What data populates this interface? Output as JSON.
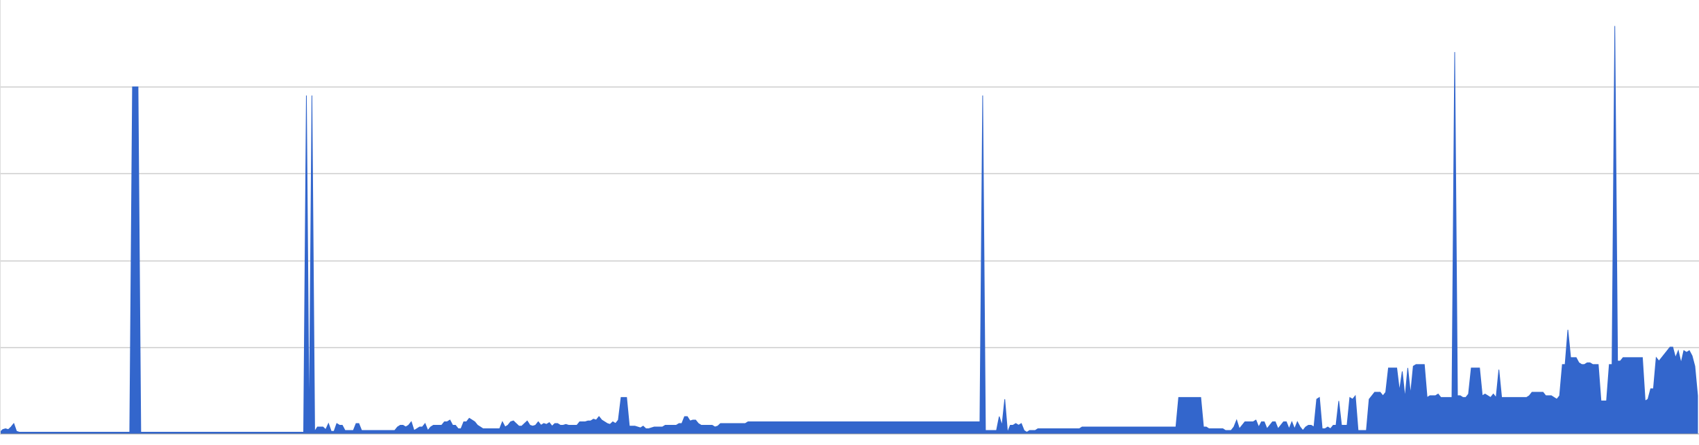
{
  "chart_data": {
    "type": "area",
    "title": "",
    "xlabel": "",
    "ylabel": "",
    "grid": true,
    "legend": "none",
    "ylim": [
      0,
      5
    ],
    "gridlines": [
      1,
      2,
      3,
      4
    ],
    "colors": {
      "area": "#3366cc",
      "grid": "#cccccc",
      "axis": "#999999",
      "background": "#ffffff"
    },
    "series": [
      {
        "values": [
          0.02,
          0.05,
          0.06,
          0.05,
          0.08,
          0.12,
          0.03,
          0.02,
          0.02,
          0.02,
          0.02,
          0.02,
          0.02,
          0.02,
          0.02,
          0.02,
          0.02,
          0.02,
          0.02,
          0.02,
          0.02,
          0.02,
          0.02,
          0.02,
          0.02,
          0.02,
          0.02,
          0.02,
          0.02,
          0.02,
          0.02,
          0.02,
          0.02,
          0.02,
          0.02,
          0.02,
          0.02,
          0.02,
          0.02,
          0.02,
          0.02,
          0.02,
          0.02,
          0.02,
          0.02,
          0.02,
          0.02,
          0.02,
          4.0,
          4.0,
          4.0,
          0.02,
          0.02,
          0.02,
          0.02,
          0.02,
          0.02,
          0.02,
          0.02,
          0.02,
          0.02,
          0.02,
          0.02,
          0.02,
          0.02,
          0.02,
          0.02,
          0.02,
          0.02,
          0.02,
          0.02,
          0.02,
          0.02,
          0.02,
          0.02,
          0.02,
          0.02,
          0.02,
          0.02,
          0.02,
          0.02,
          0.02,
          0.02,
          0.02,
          0.02,
          0.02,
          0.02,
          0.02,
          0.02,
          0.02,
          0.02,
          0.02,
          0.02,
          0.02,
          0.02,
          0.02,
          0.02,
          0.02,
          0.02,
          0.02,
          0.02,
          0.02,
          0.02,
          0.02,
          0.02,
          0.02,
          0.02,
          0.02,
          0.02,
          0.02,
          0.02,
          3.9,
          0.03,
          3.9,
          0.03,
          0.08,
          0.08,
          0.08,
          0.05,
          0.12,
          0.03,
          0.03,
          0.12,
          0.1,
          0.1,
          0.04,
          0.04,
          0.04,
          0.04,
          0.12,
          0.12,
          0.04,
          0.04,
          0.04,
          0.04,
          0.04,
          0.04,
          0.04,
          0.04,
          0.04,
          0.04,
          0.04,
          0.04,
          0.04,
          0.08,
          0.1,
          0.1,
          0.08,
          0.1,
          0.14,
          0.04,
          0.06,
          0.08,
          0.08,
          0.12,
          0.04,
          0.08,
          0.1,
          0.1,
          0.1,
          0.1,
          0.14,
          0.14,
          0.16,
          0.1,
          0.1,
          0.06,
          0.06,
          0.14,
          0.14,
          0.18,
          0.16,
          0.14,
          0.1,
          0.08,
          0.06,
          0.06,
          0.06,
          0.06,
          0.06,
          0.06,
          0.06,
          0.14,
          0.08,
          0.1,
          0.14,
          0.15,
          0.12,
          0.09,
          0.09,
          0.12,
          0.15,
          0.1,
          0.09,
          0.1,
          0.14,
          0.1,
          0.12,
          0.11,
          0.13,
          0.09,
          0.12,
          0.12,
          0.1,
          0.1,
          0.11,
          0.1,
          0.1,
          0.1,
          0.1,
          0.14,
          0.14,
          0.14,
          0.15,
          0.15,
          0.17,
          0.16,
          0.2,
          0.16,
          0.14,
          0.12,
          0.11,
          0.14,
          0.12,
          0.16,
          0.42,
          0.42,
          0.42,
          0.09,
          0.09,
          0.09,
          0.08,
          0.07,
          0.09,
          0.06,
          0.06,
          0.07,
          0.08,
          0.08,
          0.08,
          0.08,
          0.1,
          0.1,
          0.1,
          0.1,
          0.1,
          0.12,
          0.12,
          0.2,
          0.2,
          0.15,
          0.16,
          0.16,
          0.12,
          0.1,
          0.1,
          0.1,
          0.1,
          0.1,
          0.08,
          0.09,
          0.12,
          0.12,
          0.12,
          0.12,
          0.12,
          0.12,
          0.12,
          0.12,
          0.12,
          0.12,
          0.14,
          0.14,
          0.14,
          0.14,
          0.14,
          0.14,
          0.14,
          0.14,
          0.14,
          0.14,
          0.14,
          0.14,
          0.14,
          0.14,
          0.14,
          0.14,
          0.14,
          0.14,
          0.14,
          0.14,
          0.14,
          0.14,
          0.14,
          0.14,
          0.14,
          0.14,
          0.14,
          0.14,
          0.14,
          0.14,
          0.14,
          0.14,
          0.14,
          0.14,
          0.14,
          0.14,
          0.14,
          0.14,
          0.14,
          0.14,
          0.14,
          0.14,
          0.14,
          0.14,
          0.14,
          0.14,
          0.14,
          0.14,
          0.14,
          0.14,
          0.14,
          0.14,
          0.14,
          0.14,
          0.14,
          0.14,
          0.14,
          0.14,
          0.14,
          0.14,
          0.14,
          0.14,
          0.14,
          0.14,
          0.14,
          0.14,
          0.14,
          0.14,
          0.14,
          0.14,
          0.14,
          0.14,
          0.14,
          0.14,
          0.14,
          0.14,
          0.14,
          0.14,
          0.14,
          0.14,
          0.14,
          0.14,
          0.14,
          0.14,
          0.14,
          3.9,
          0.04,
          0.04,
          0.04,
          0.04,
          0.04,
          0.2,
          0.1,
          0.4,
          0.02,
          0.1,
          0.1,
          0.12,
          0.1,
          0.12,
          0.04,
          0.02,
          0.04,
          0.04,
          0.04,
          0.06,
          0.06,
          0.06,
          0.06,
          0.06,
          0.06,
          0.06,
          0.06,
          0.06,
          0.06,
          0.06,
          0.06,
          0.06,
          0.06,
          0.06,
          0.06,
          0.08,
          0.08,
          0.08,
          0.08,
          0.08,
          0.08,
          0.08,
          0.08,
          0.08,
          0.08,
          0.08,
          0.08,
          0.08,
          0.08,
          0.08,
          0.08,
          0.08,
          0.08,
          0.08,
          0.08,
          0.08,
          0.08,
          0.08,
          0.08,
          0.08,
          0.08,
          0.08,
          0.08,
          0.08,
          0.08,
          0.08,
          0.08,
          0.08,
          0.08,
          0.08,
          0.42,
          0.42,
          0.42,
          0.42,
          0.42,
          0.42,
          0.42,
          0.42,
          0.42,
          0.08,
          0.08,
          0.06,
          0.06,
          0.06,
          0.06,
          0.06,
          0.06,
          0.04,
          0.04,
          0.04,
          0.08,
          0.16,
          0.06,
          0.1,
          0.14,
          0.14,
          0.14,
          0.14,
          0.16,
          0.08,
          0.14,
          0.14,
          0.06,
          0.1,
          0.14,
          0.14,
          0.06,
          0.1,
          0.14,
          0.14,
          0.06,
          0.14,
          0.06,
          0.14,
          0.08,
          0.04,
          0.08,
          0.1,
          0.1,
          0.08,
          0.4,
          0.42,
          0.06,
          0.06,
          0.08,
          0.06,
          0.1,
          0.1,
          0.38,
          0.1,
          0.1,
          0.1,
          0.42,
          0.4,
          0.44,
          0.04,
          0.04,
          0.04,
          0.04,
          0.4,
          0.44,
          0.48,
          0.48,
          0.48,
          0.44,
          0.48,
          0.76,
          0.76,
          0.76,
          0.76,
          0.5,
          0.72,
          0.42,
          0.76,
          0.46,
          0.78,
          0.8,
          0.8,
          0.8,
          0.8,
          0.42,
          0.44,
          0.44,
          0.44,
          0.46,
          0.42,
          0.42,
          0.42,
          0.42,
          0.42,
          4.4,
          0.44,
          0.44,
          0.42,
          0.42,
          0.46,
          0.76,
          0.76,
          0.76,
          0.76,
          0.44,
          0.46,
          0.44,
          0.42,
          0.46,
          0.42,
          0.74,
          0.42,
          0.42,
          0.42,
          0.42,
          0.42,
          0.42,
          0.42,
          0.42,
          0.42,
          0.42,
          0.44,
          0.48,
          0.48,
          0.48,
          0.48,
          0.48,
          0.44,
          0.44,
          0.44,
          0.42,
          0.4,
          0.44,
          0.8,
          0.8,
          1.2,
          0.88,
          0.88,
          0.88,
          0.82,
          0.8,
          0.8,
          0.82,
          0.82,
          0.8,
          0.8,
          0.8,
          0.38,
          0.38,
          0.38,
          0.8,
          0.8,
          4.7,
          0.84,
          0.84,
          0.88,
          0.88,
          0.88,
          0.88,
          0.88,
          0.88,
          0.88,
          0.88,
          0.38,
          0.4,
          0.52,
          0.52,
          0.88,
          0.84,
          0.88,
          0.92,
          0.96,
          1.0,
          1.0,
          0.88,
          0.96,
          0.82,
          0.96,
          0.94,
          0.96,
          0.9,
          0.78,
          0.44
        ]
      }
    ]
  }
}
